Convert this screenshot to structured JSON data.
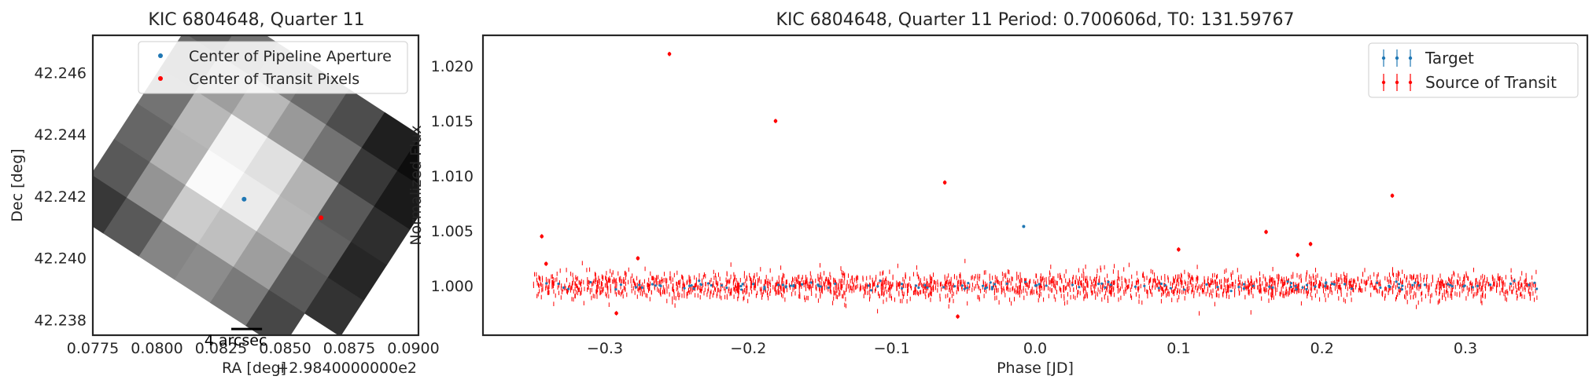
{
  "chart_data": [
    {
      "type": "heatmap",
      "title": "KIC 6804648, Quarter 11",
      "xlabel": "RA [deg]",
      "ylabel": "Dec [deg]",
      "x_offset_label": "+2.9840000000e2",
      "xlim": [
        0.0775,
        0.0902
      ],
      "ylim": [
        42.2375,
        42.2472
      ],
      "xticks": [
        0.0775,
        0.08,
        0.0825,
        0.085,
        0.0875,
        0.09
      ],
      "xtick_labels": [
        "0.0775",
        "0.0800",
        "0.0825",
        "0.0850",
        "0.0875",
        "0.0900"
      ],
      "yticks": [
        42.238,
        42.24,
        42.242,
        42.244,
        42.246
      ],
      "ytick_labels": [
        "42.238",
        "42.240",
        "42.242",
        "42.244",
        "42.246"
      ],
      "colormap": "grayscale",
      "pixel_rotation_deg": 33,
      "pixel_grid": {
        "rows": 6,
        "cols": 7,
        "values": [
          [
            0.35,
            0.45,
            0.5,
            0.42,
            0.3,
            0.12,
            0.05
          ],
          [
            0.42,
            0.62,
            0.72,
            0.6,
            0.45,
            0.22,
            0.1
          ],
          [
            0.45,
            0.72,
            0.95,
            0.88,
            0.7,
            0.35,
            0.18
          ],
          [
            0.4,
            0.7,
            0.98,
            0.92,
            0.72,
            0.38,
            0.15
          ],
          [
            0.35,
            0.58,
            0.8,
            0.75,
            0.62,
            0.35,
            0.2
          ],
          [
            0.22,
            0.35,
            0.52,
            0.55,
            0.48,
            0.28,
            null
          ]
        ]
      },
      "markers": [
        {
          "name": "Center of Pipeline Aperture",
          "ra": 0.0834,
          "dec": 42.2419,
          "color": "#1f77b4"
        },
        {
          "name": "Center of Transit Pixels",
          "ra": 0.0864,
          "dec": 42.2413,
          "color": "#ff0000"
        }
      ],
      "scale_bar": {
        "label": "4 arcsec",
        "length_deg": 0.0012,
        "ra_start": 0.0829,
        "dec": 42.2377
      },
      "legend": {
        "position": "top-right",
        "entries": [
          "Center of Pipeline Aperture",
          "Center of Transit Pixels"
        ]
      },
      "grid": false
    },
    {
      "type": "scatter",
      "title": "KIC 6804648, Quarter 11 Period: 0.700606d, T0: 131.59767",
      "xlabel": "Phase [JD]",
      "ylabel": "Normalized Flux",
      "xlim": [
        -0.385,
        0.385
      ],
      "ylim": [
        0.9955,
        1.0228
      ],
      "xticks": [
        -0.3,
        -0.2,
        -0.1,
        0.0,
        0.1,
        0.2,
        0.3
      ],
      "xtick_labels": [
        "−0.3",
        "−0.2",
        "−0.1",
        "0.0",
        "0.1",
        "0.2",
        "0.3"
      ],
      "yticks": [
        1.0,
        1.005,
        1.01,
        1.015,
        1.02
      ],
      "ytick_labels": [
        "1.000",
        "1.005",
        "1.010",
        "1.015",
        "1.020"
      ],
      "grid": false,
      "legend": {
        "position": "top-right",
        "entries": [
          "Target",
          "Source of Transit"
        ]
      },
      "series": [
        {
          "name": "Target",
          "color": "#1f77b4",
          "phase_range": [
            -0.35,
            0.35
          ],
          "baseline": 1.0,
          "scatter_sd": 0.0002,
          "dense_points": 140,
          "highlighted": [
            {
              "x": -0.008,
              "y": 1.0054
            }
          ]
        },
        {
          "name": "Source of Transit",
          "color": "#ff0000",
          "phase_range": [
            -0.35,
            0.35
          ],
          "baseline": 1.0,
          "scatter_sd": 0.0006,
          "error_bar": 0.0002,
          "dense_points": 2600,
          "outliers": [
            {
              "x": -0.255,
              "y": 1.0211
            },
            {
              "x": -0.181,
              "y": 1.015
            },
            {
              "x": -0.063,
              "y": 1.0094
            },
            {
              "x": 0.249,
              "y": 1.0082
            },
            {
              "x": -0.344,
              "y": 1.0045
            },
            {
              "x": 0.161,
              "y": 1.0049
            },
            {
              "x": 0.192,
              "y": 1.0038
            },
            {
              "x": 0.1,
              "y": 1.0033
            },
            {
              "x": 0.183,
              "y": 1.0028
            },
            {
              "x": -0.341,
              "y": 1.002
            },
            {
              "x": -0.277,
              "y": 1.0025
            },
            {
              "x": -0.054,
              "y": 0.9972
            },
            {
              "x": -0.292,
              "y": 0.9975
            }
          ]
        }
      ]
    }
  ]
}
